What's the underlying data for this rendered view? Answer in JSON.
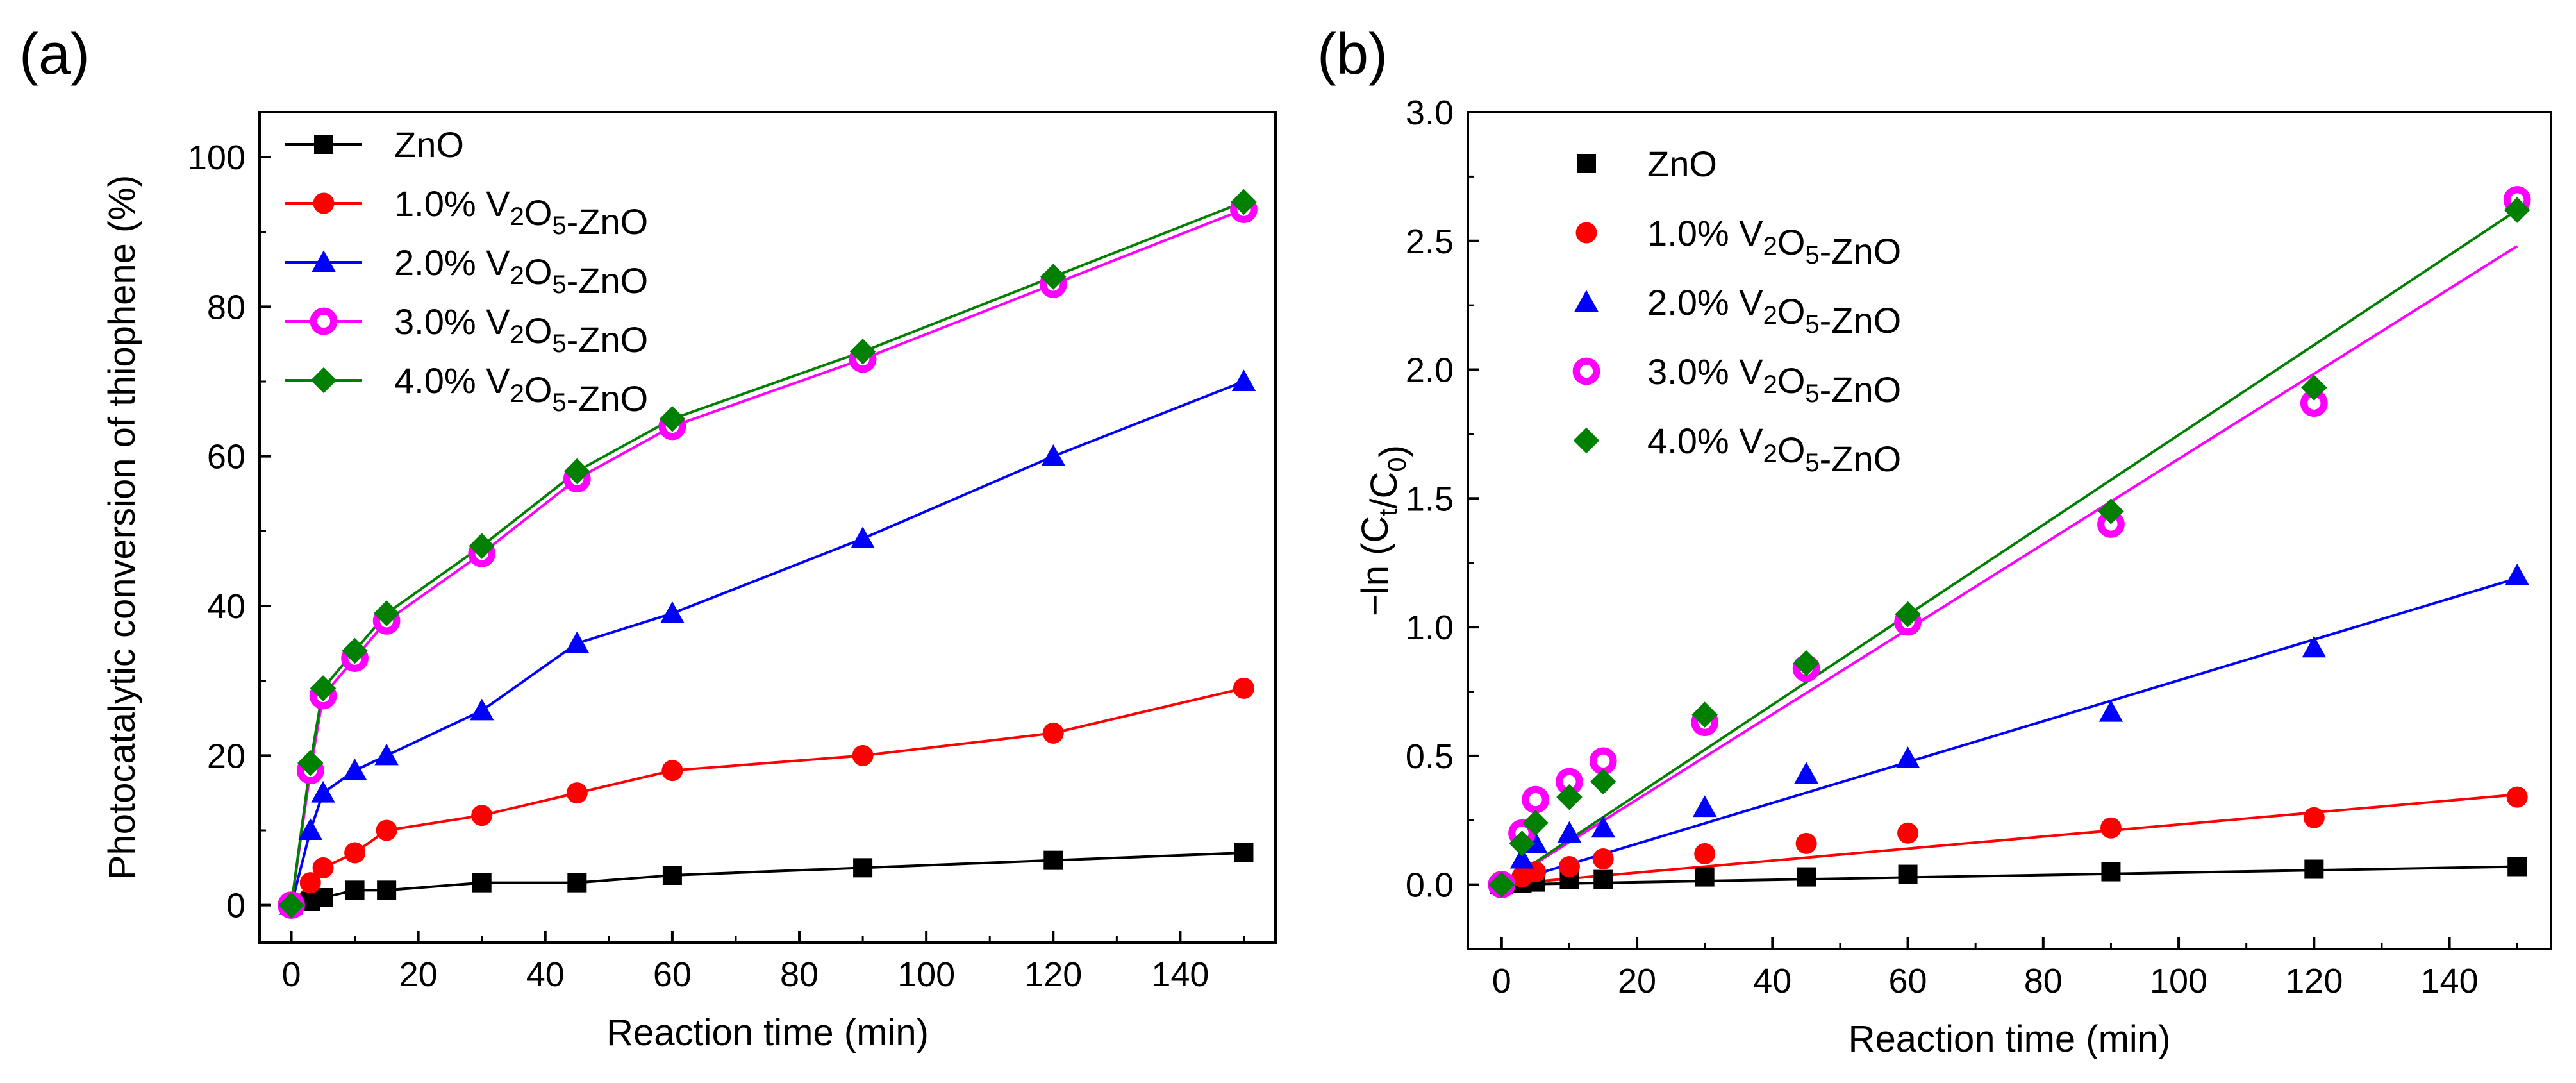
{
  "figure": {
    "panels": [
      {
        "letter": "(a)",
        "chart_data": {
          "type": "line",
          "xlabel": "Reaction time (min)",
          "ylabel": "Photocatalytic conversion of thiophene (%)",
          "xlim": [
            -5,
            155
          ],
          "ylim": [
            -5,
            106
          ],
          "xticks": [
            0,
            20,
            40,
            60,
            80,
            100,
            120,
            140
          ],
          "yticks": [
            0,
            20,
            40,
            60,
            80,
            100
          ],
          "legend_position": "top-left",
          "x": [
            0,
            3,
            5,
            10,
            15,
            30,
            45,
            60,
            90,
            120,
            150
          ],
          "series": [
            {
              "name": "ZnO",
              "color": "#000000",
              "marker": "square",
              "values": [
                0,
                0.5,
                1,
                2,
                2,
                3,
                3,
                4,
                5,
                6,
                7
              ]
            },
            {
              "name": "1.0% V2O5-ZnO",
              "color": "#ff0000",
              "marker": "circle",
              "values": [
                0,
                3,
                5,
                7,
                10,
                12,
                15,
                18,
                20,
                23,
                29
              ]
            },
            {
              "name": "2.0% V2O5-ZnO",
              "color": "#0000ff",
              "marker": "triangle",
              "values": [
                0,
                10,
                15,
                18,
                20,
                26,
                35,
                39,
                49,
                60,
                70
              ]
            },
            {
              "name": "3.0% V2O5-ZnO",
              "color": "#ff00ff",
              "marker": "ring",
              "values": [
                0,
                18,
                28,
                33,
                38,
                47,
                57,
                64,
                73,
                83,
                93
              ]
            },
            {
              "name": "4.0% V2O5-ZnO",
              "color": "#008000",
              "marker": "diamond",
              "values": [
                0,
                19,
                29,
                34,
                39,
                48,
                58,
                65,
                74,
                84,
                94
              ]
            }
          ]
        }
      },
      {
        "letter": "(b)",
        "chart_data": {
          "type": "scatter",
          "xlabel": "Reaction time (min)",
          "ylabel": "-ln (Ct/C0)",
          "xlim": [
            -5,
            155
          ],
          "ylim": [
            -0.25,
            3.0
          ],
          "xticks": [
            0,
            20,
            40,
            60,
            80,
            100,
            120,
            140
          ],
          "yticks": [
            0.0,
            0.5,
            1.0,
            1.5,
            2.0,
            2.5,
            3.0
          ],
          "legend_position": "top-left",
          "x": [
            0,
            3,
            5,
            10,
            15,
            30,
            45,
            60,
            90,
            120,
            150
          ],
          "series": [
            {
              "name": "ZnO",
              "color": "#000000",
              "marker": "square",
              "values": [
                0,
                0.005,
                0.01,
                0.02,
                0.02,
                0.03,
                0.03,
                0.04,
                0.05,
                0.06,
                0.07
              ],
              "fit": {
                "x0": 0,
                "y0": 0.0,
                "x1": 150,
                "y1": 0.07
              }
            },
            {
              "name": "1.0% V2O5-ZnO",
              "color": "#ff0000",
              "marker": "circle",
              "values": [
                0,
                0.03,
                0.05,
                0.07,
                0.1,
                0.12,
                0.16,
                0.2,
                0.22,
                0.26,
                0.34
              ],
              "fit": {
                "x0": 0,
                "y0": 0.0,
                "x1": 150,
                "y1": 0.35
              }
            },
            {
              "name": "2.0% V2O5-ZnO",
              "color": "#0000ff",
              "marker": "triangle",
              "values": [
                0,
                0.1,
                0.16,
                0.2,
                0.22,
                0.3,
                0.43,
                0.49,
                0.67,
                0.92,
                1.2
              ],
              "fit": {
                "x0": 0,
                "y0": 0.0,
                "x1": 150,
                "y1": 1.19
              }
            },
            {
              "name": "3.0% V2O5-ZnO",
              "color": "#ff00ff",
              "marker": "ring",
              "values": [
                0,
                0.2,
                0.33,
                0.4,
                0.48,
                0.63,
                0.84,
                1.02,
                1.4,
                1.87,
                2.66
              ],
              "fit": {
                "x0": 0,
                "y0": 0.0,
                "x1": 150,
                "y1": 2.48
              }
            },
            {
              "name": "4.0% V2O5-ZnO",
              "color": "#008000",
              "marker": "diamond",
              "values": [
                0,
                0.16,
                0.24,
                0.34,
                0.4,
                0.66,
                0.86,
                1.05,
                1.45,
                1.93,
                2.62
              ],
              "fit": {
                "x0": 0,
                "y0": 0.0,
                "x1": 150,
                "y1": 2.62
              }
            }
          ]
        }
      }
    ]
  }
}
